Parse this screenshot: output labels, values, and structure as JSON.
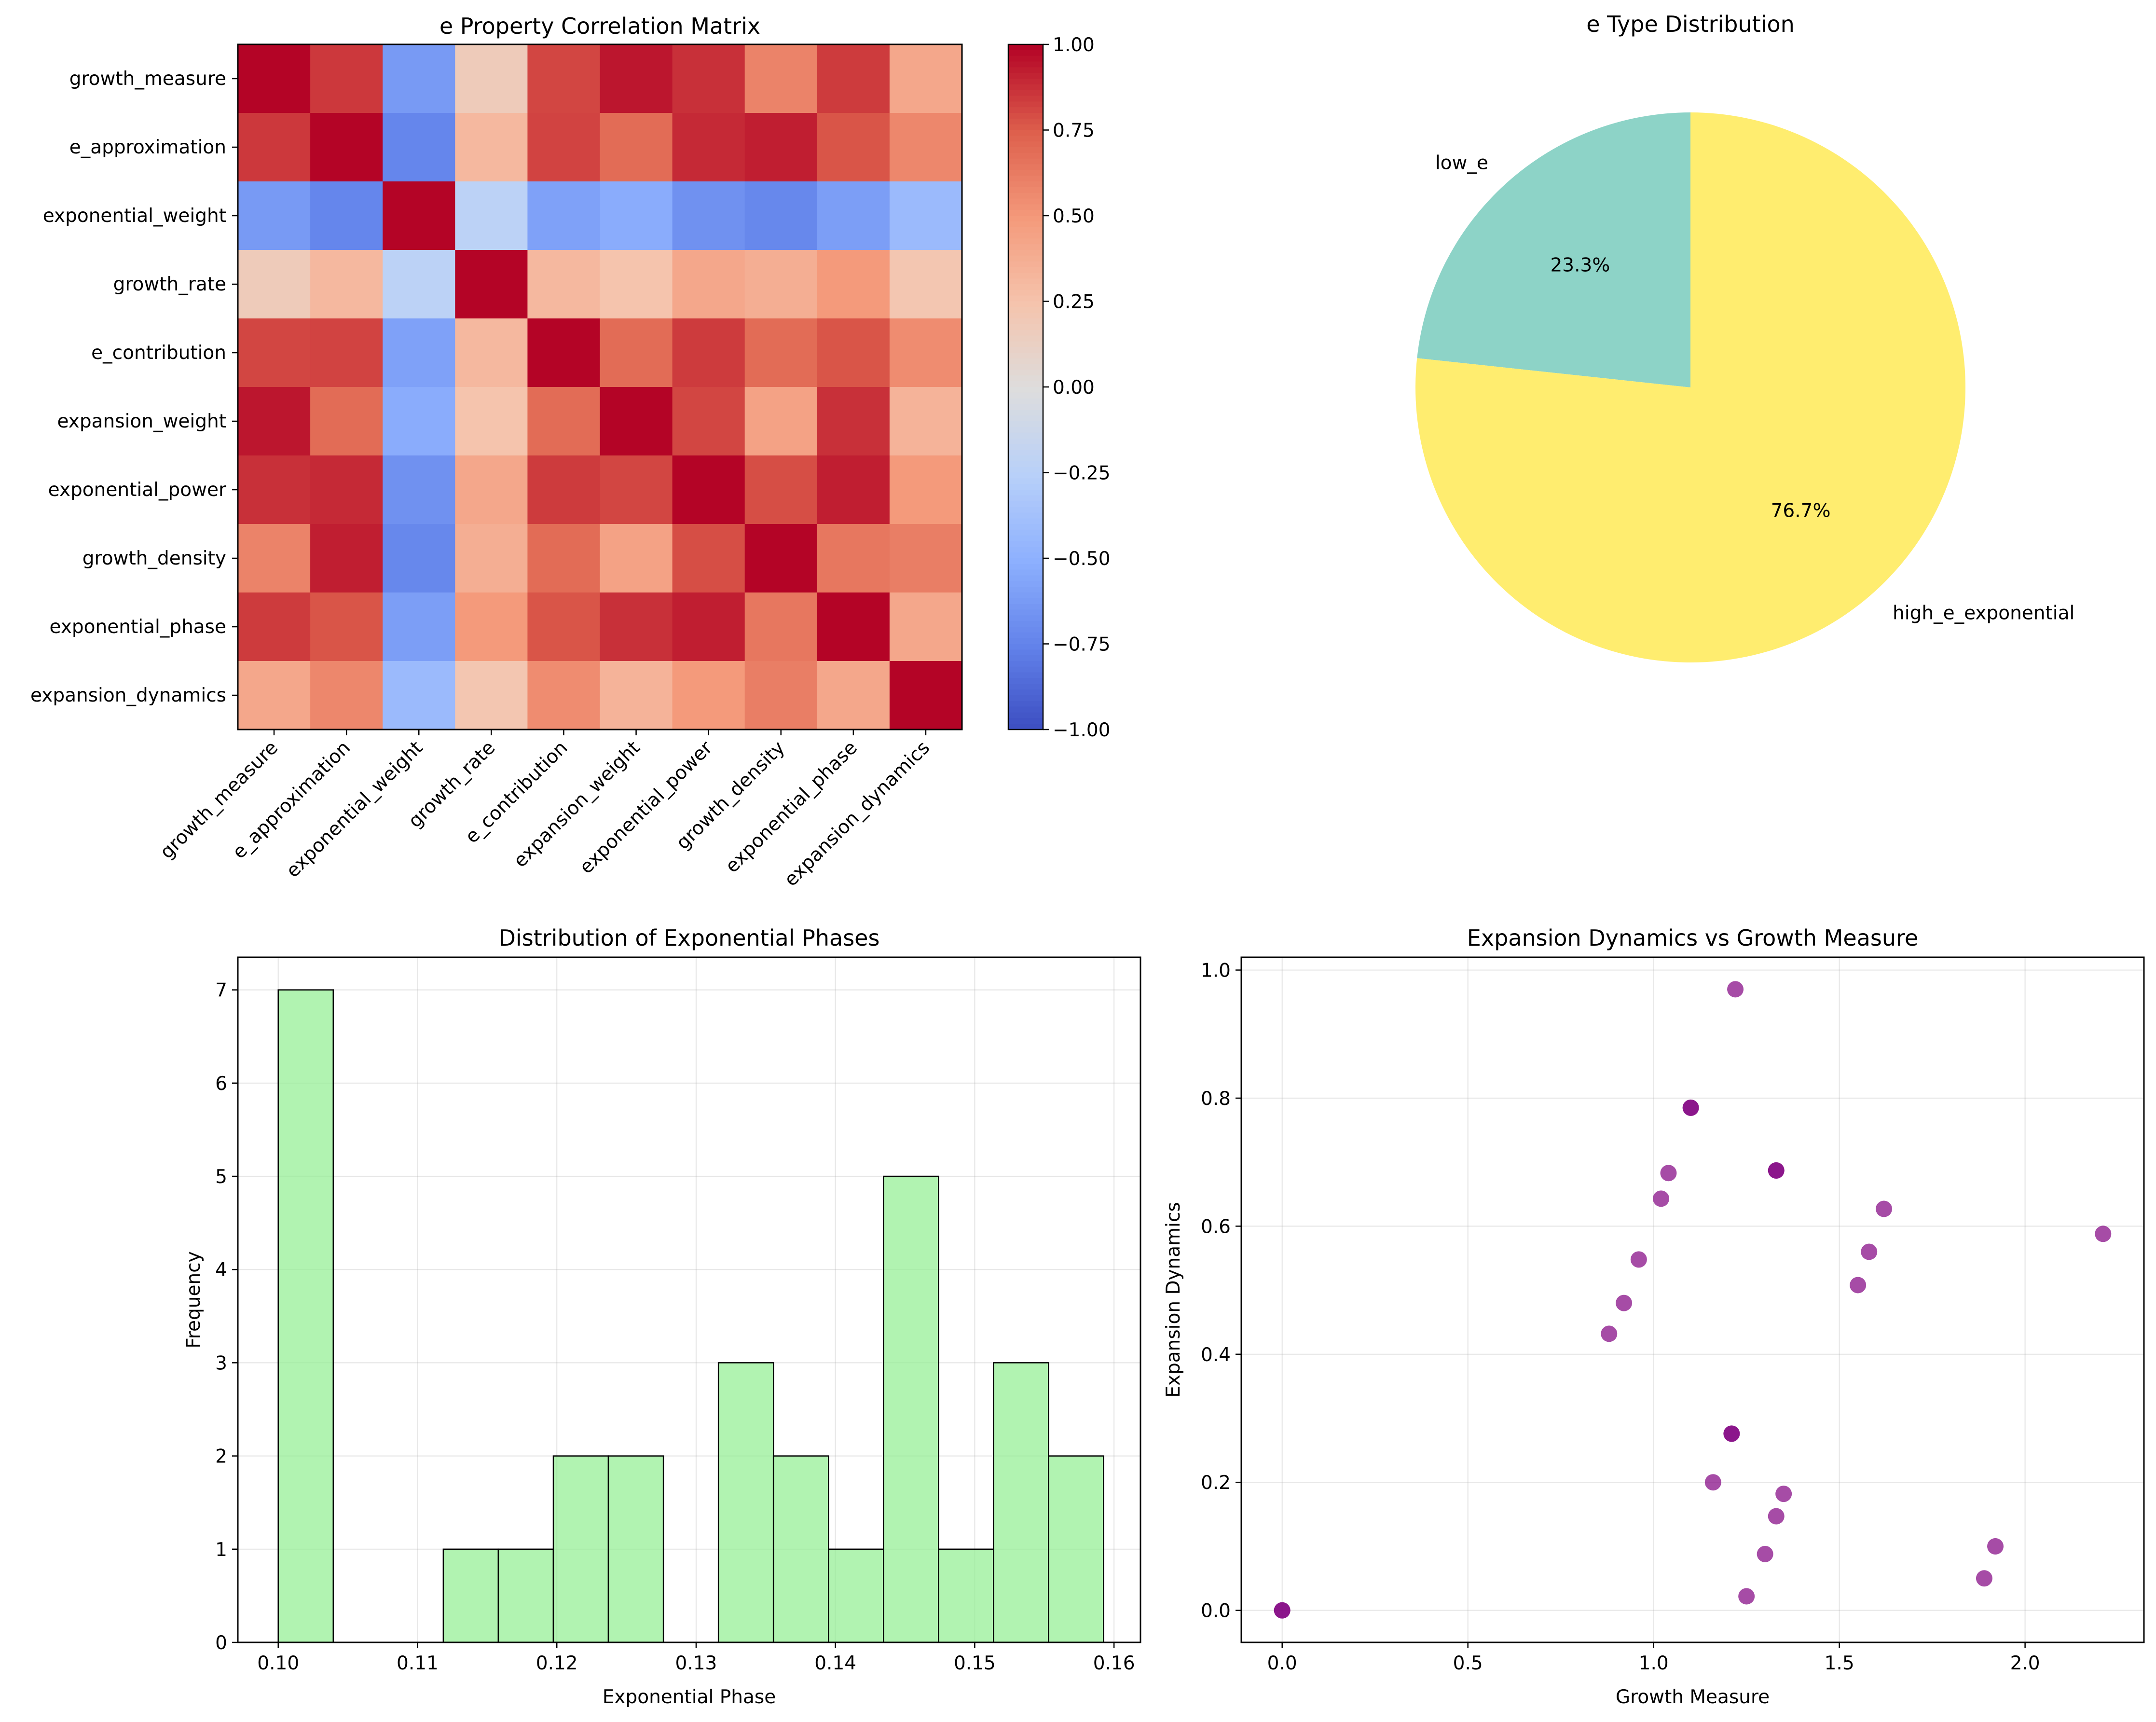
{
  "figure": {
    "panels": [
      "heatmap",
      "pie",
      "histogram",
      "scatter"
    ]
  },
  "chart_data": [
    {
      "type": "heatmap",
      "title": "e Property Correlation Matrix",
      "labels": [
        "growth_measure",
        "e_approximation",
        "exponential_weight",
        "growth_rate",
        "e_contribution",
        "expansion_weight",
        "exponential_power",
        "growth_density",
        "exponential_phase",
        "expansion_dynamics"
      ],
      "matrix": [
        [
          1.0,
          0.86,
          -0.62,
          0.18,
          0.82,
          0.95,
          0.88,
          0.6,
          0.85,
          0.42
        ],
        [
          0.86,
          1.0,
          -0.73,
          0.32,
          0.83,
          0.7,
          0.9,
          0.93,
          0.78,
          0.58
        ],
        [
          -0.62,
          -0.73,
          1.0,
          -0.22,
          -0.58,
          -0.52,
          -0.67,
          -0.72,
          -0.6,
          -0.42
        ],
        [
          0.18,
          0.32,
          -0.22,
          1.0,
          0.32,
          0.25,
          0.42,
          0.38,
          0.5,
          0.23
        ],
        [
          0.82,
          0.83,
          -0.58,
          0.32,
          1.0,
          0.7,
          0.85,
          0.7,
          0.78,
          0.56
        ],
        [
          0.95,
          0.7,
          -0.52,
          0.25,
          0.7,
          1.0,
          0.82,
          0.45,
          0.88,
          0.35
        ],
        [
          0.88,
          0.9,
          -0.67,
          0.42,
          0.85,
          0.82,
          1.0,
          0.8,
          0.93,
          0.5
        ],
        [
          0.6,
          0.93,
          -0.72,
          0.38,
          0.7,
          0.45,
          0.8,
          1.0,
          0.65,
          0.62
        ],
        [
          0.85,
          0.78,
          -0.6,
          0.5,
          0.78,
          0.88,
          0.93,
          0.65,
          1.0,
          0.42
        ],
        [
          0.42,
          0.58,
          -0.42,
          0.23,
          0.56,
          0.35,
          0.5,
          0.62,
          0.42,
          1.0
        ]
      ],
      "colormap": "coolwarm",
      "vmin": -1.0,
      "vmax": 1.0,
      "colorbar_ticks": [
        "1.00",
        "0.75",
        "0.50",
        "0.25",
        "0.00",
        "−0.25",
        "−0.50",
        "−0.75",
        "−1.00"
      ],
      "colorbar_values": [
        1.0,
        0.75,
        0.5,
        0.25,
        0.0,
        -0.25,
        -0.5,
        -0.75,
        -1.0
      ]
    },
    {
      "type": "pie",
      "title": "e Type Distribution",
      "slices": [
        {
          "label": "low_e",
          "value": 23.3,
          "pct_label": "23.3%",
          "color": "#8dd3c7"
        },
        {
          "label": "high_e_exponential",
          "value": 76.7,
          "pct_label": "76.7%",
          "color": "#ffed6f"
        }
      ],
      "start_angle_deg": 90
    },
    {
      "type": "bar",
      "subtype": "histogram",
      "title": "Distribution of Exponential Phases",
      "xlabel": "Exponential Phase",
      "ylabel": "Frequency",
      "bin_start": 0.1,
      "bin_width": 0.00395,
      "counts": [
        7,
        0,
        0,
        1,
        1,
        2,
        2,
        0,
        3,
        2,
        1,
        5,
        1,
        3,
        2
      ],
      "xlim": [
        0.0971,
        0.1619
      ],
      "ylim": [
        0,
        7.35
      ],
      "xticks": [
        0.1,
        0.11,
        0.12,
        0.13,
        0.14,
        0.15,
        0.16
      ],
      "xtick_labels": [
        "0.10",
        "0.11",
        "0.12",
        "0.13",
        "0.14",
        "0.15",
        "0.16"
      ],
      "yticks": [
        0,
        1,
        2,
        3,
        4,
        5,
        6,
        7
      ],
      "ytick_labels": [
        "0",
        "1",
        "2",
        "3",
        "4",
        "5",
        "6",
        "7"
      ],
      "bar_color": "#90ee90",
      "edge_color": "#000000",
      "grid": true
    },
    {
      "type": "scatter",
      "title": "Expansion Dynamics vs Growth Measure",
      "xlabel": "Growth Measure",
      "ylabel": "Expansion Dynamics",
      "points": [
        [
          0.0,
          0.0
        ],
        [
          0.0,
          0.0
        ],
        [
          1.22,
          0.97
        ],
        [
          1.1,
          0.785
        ],
        [
          1.1,
          0.785
        ],
        [
          1.33,
          0.687
        ],
        [
          1.33,
          0.687
        ],
        [
          1.04,
          0.683
        ],
        [
          1.62,
          0.627
        ],
        [
          1.02,
          0.643
        ],
        [
          2.21,
          0.588
        ],
        [
          1.58,
          0.56
        ],
        [
          0.96,
          0.548
        ],
        [
          1.55,
          0.508
        ],
        [
          0.92,
          0.48
        ],
        [
          0.88,
          0.432
        ],
        [
          1.21,
          0.276
        ],
        [
          1.21,
          0.276
        ],
        [
          1.16,
          0.2
        ],
        [
          1.35,
          0.182
        ],
        [
          1.33,
          0.147
        ],
        [
          1.92,
          0.1
        ],
        [
          1.3,
          0.088
        ],
        [
          1.89,
          0.05
        ],
        [
          1.25,
          0.022
        ]
      ],
      "xlim": [
        -0.11,
        2.32
      ],
      "ylim": [
        -0.05,
        1.02
      ],
      "xticks": [
        0.0,
        0.5,
        1.0,
        1.5,
        2.0
      ],
      "xtick_labels": [
        "0.0",
        "0.5",
        "1.0",
        "1.5",
        "2.0"
      ],
      "yticks": [
        0.0,
        0.2,
        0.4,
        0.6,
        0.8,
        1.0
      ],
      "ytick_labels": [
        "0.0",
        "0.2",
        "0.4",
        "0.6",
        "0.8",
        "1.0"
      ],
      "marker_color": "#800080",
      "alpha": 0.7,
      "grid": true
    }
  ]
}
